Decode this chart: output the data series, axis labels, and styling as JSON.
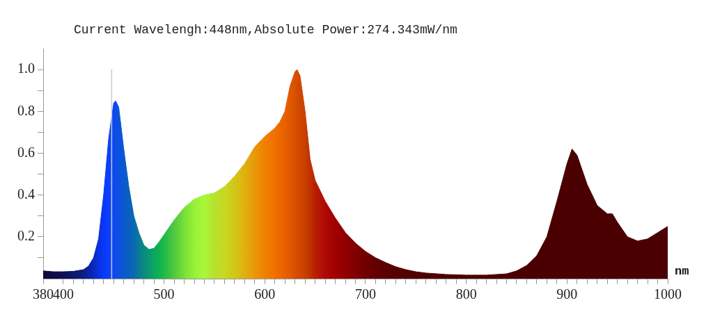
{
  "chart_data": {
    "type": "area",
    "title": "Current Wavelengh:448nm,Absolute Power:274.343mW/nm",
    "xlabel": "nm",
    "x": [
      380,
      390,
      400,
      410,
      420,
      425,
      430,
      435,
      440,
      445,
      450,
      452,
      455,
      460,
      465,
      470,
      475,
      480,
      485,
      490,
      495,
      500,
      510,
      520,
      530,
      540,
      550,
      560,
      570,
      580,
      590,
      600,
      610,
      615,
      620,
      625,
      630,
      632,
      635,
      640,
      645,
      650,
      660,
      670,
      680,
      690,
      700,
      710,
      720,
      730,
      740,
      750,
      760,
      780,
      800,
      820,
      840,
      850,
      860,
      870,
      880,
      890,
      900,
      905,
      910,
      920,
      930,
      940,
      945,
      950,
      960,
      970,
      980,
      990,
      1000
    ],
    "series": [
      {
        "values": [
          0.037,
          0.033,
          0.033,
          0.035,
          0.043,
          0.06,
          0.1,
          0.19,
          0.4,
          0.67,
          0.84,
          0.85,
          0.82,
          0.62,
          0.44,
          0.3,
          0.22,
          0.16,
          0.14,
          0.145,
          0.175,
          0.21,
          0.28,
          0.34,
          0.38,
          0.4,
          0.41,
          0.44,
          0.49,
          0.55,
          0.63,
          0.68,
          0.72,
          0.75,
          0.8,
          0.92,
          0.99,
          1.0,
          0.97,
          0.8,
          0.57,
          0.47,
          0.37,
          0.29,
          0.22,
          0.17,
          0.13,
          0.1,
          0.077,
          0.057,
          0.043,
          0.033,
          0.027,
          0.02,
          0.017,
          0.017,
          0.023,
          0.037,
          0.063,
          0.11,
          0.2,
          0.37,
          0.55,
          0.62,
          0.59,
          0.45,
          0.35,
          0.31,
          0.31,
          0.27,
          0.2,
          0.18,
          0.19,
          0.22,
          0.25
        ],
        "colors": [
          "#0a0a3c",
          "#0c0c48",
          "#0e1054",
          "#0e1668",
          "#0c1e88",
          "#0c22a0",
          "#0a28c0",
          "#0a30e0",
          "#0a38f8",
          "#0a40ff",
          "#0c48f0",
          "#0c4ce8",
          "#0c50e0",
          "#0a58d0",
          "#0a60c0",
          "#0a68b0",
          "#0a7a98",
          "#0a8a80",
          "#0a9870",
          "#0aa860",
          "#10b050",
          "#20b848",
          "#50c840",
          "#78e038",
          "#98f038",
          "#a8f838",
          "#b8e030",
          "#c8d820",
          "#d0c818",
          "#e0b010",
          "#e89808",
          "#f08000",
          "#f07000",
          "#ec6800",
          "#e86000",
          "#e05800",
          "#d85000",
          "#d44c00",
          "#d04800",
          "#c84000",
          "#c03000",
          "#b82000",
          "#b00808",
          "#a00000",
          "#900000",
          "#800000",
          "#700000",
          "#640000",
          "#5c0000",
          "#560000",
          "#520000",
          "#500000",
          "#4e0000",
          "#4c0000",
          "#4a0000",
          "#4a0000",
          "#4a0000",
          "#4a0000",
          "#4a0000",
          "#4a0000",
          "#4a0000",
          "#4a0000",
          "#4a0000",
          "#4a0000",
          "#4a0000",
          "#4a0000",
          "#4a0000",
          "#4a0000",
          "#4a0000",
          "#4a0000",
          "#4a0000",
          "#4a0000",
          "#4a0000",
          "#4a0000",
          "#4a0000"
        ]
      }
    ],
    "xlim": [
      380,
      1000
    ],
    "xticks": [
      380,
      400,
      {
        "value": 410,
        "label": null
      },
      {
        "value": 420,
        "label": null
      },
      {
        "value": 430,
        "label": null
      },
      {
        "value": 440,
        "label": null
      },
      {
        "value": 450,
        "label": null
      },
      {
        "value": 460,
        "label": null
      },
      {
        "value": 470,
        "label": null
      },
      {
        "value": 480,
        "label": null
      },
      {
        "value": 490,
        "label": null
      },
      500,
      {
        "value": 510,
        "label": null
      },
      {
        "value": 520,
        "label": null
      },
      {
        "value": 530,
        "label": null
      },
      {
        "value": 540,
        "label": null
      },
      {
        "value": 550,
        "label": null
      },
      {
        "value": 560,
        "label": null
      },
      {
        "value": 570,
        "label": null
      },
      {
        "value": 580,
        "label": null
      },
      {
        "value": 590,
        "label": null
      },
      600,
      {
        "value": 610,
        "label": null
      },
      {
        "value": 620,
        "label": null
      },
      {
        "value": 630,
        "label": null
      },
      {
        "value": 640,
        "label": null
      },
      {
        "value": 650,
        "label": null
      },
      {
        "value": 660,
        "label": null
      },
      {
        "value": 670,
        "label": null
      },
      {
        "value": 680,
        "label": null
      },
      {
        "value": 690,
        "label": null
      },
      700,
      {
        "value": 710,
        "label": null
      },
      {
        "value": 720,
        "label": null
      },
      {
        "value": 730,
        "label": null
      },
      {
        "value": 740,
        "label": null
      },
      {
        "value": 750,
        "label": null
      },
      {
        "value": 760,
        "label": null
      },
      {
        "value": 770,
        "label": null
      },
      {
        "value": 780,
        "label": null
      },
      {
        "value": 790,
        "label": null
      },
      800,
      {
        "value": 810,
        "label": null
      },
      {
        "value": 820,
        "label": null
      },
      {
        "value": 830,
        "label": null
      },
      {
        "value": 840,
        "label": null
      },
      {
        "value": 850,
        "label": null
      },
      {
        "value": 860,
        "label": null
      },
      {
        "value": 870,
        "label": null
      },
      {
        "value": 880,
        "label": null
      },
      {
        "value": 890,
        "label": null
      },
      900,
      {
        "value": 910,
        "label": null
      },
      {
        "value": 920,
        "label": null
      },
      {
        "value": 930,
        "label": null
      },
      {
        "value": 940,
        "label": null
      },
      {
        "value": 950,
        "label": null
      },
      {
        "value": 960,
        "label": null
      },
      {
        "value": 970,
        "label": null
      },
      {
        "value": 980,
        "label": null
      },
      {
        "value": 990,
        "label": null
      },
      1000
    ],
    "ylim": [
      0,
      1.1
    ],
    "yticks": [
      {
        "value": 0.1,
        "label": null
      },
      0.2,
      {
        "value": 0.3,
        "label": null
      },
      0.4,
      {
        "value": 0.5,
        "label": null
      },
      0.6,
      {
        "value": 0.7,
        "label": null
      },
      0.8,
      {
        "value": 0.9,
        "label": null
      },
      {
        "value": 1,
        "label": "1.0"
      }
    ],
    "ref_lines": [
      {
        "axis": "x",
        "value": 448,
        "color": "#c8c8c8"
      }
    ],
    "grid": false,
    "legend": false,
    "marker": "none"
  }
}
